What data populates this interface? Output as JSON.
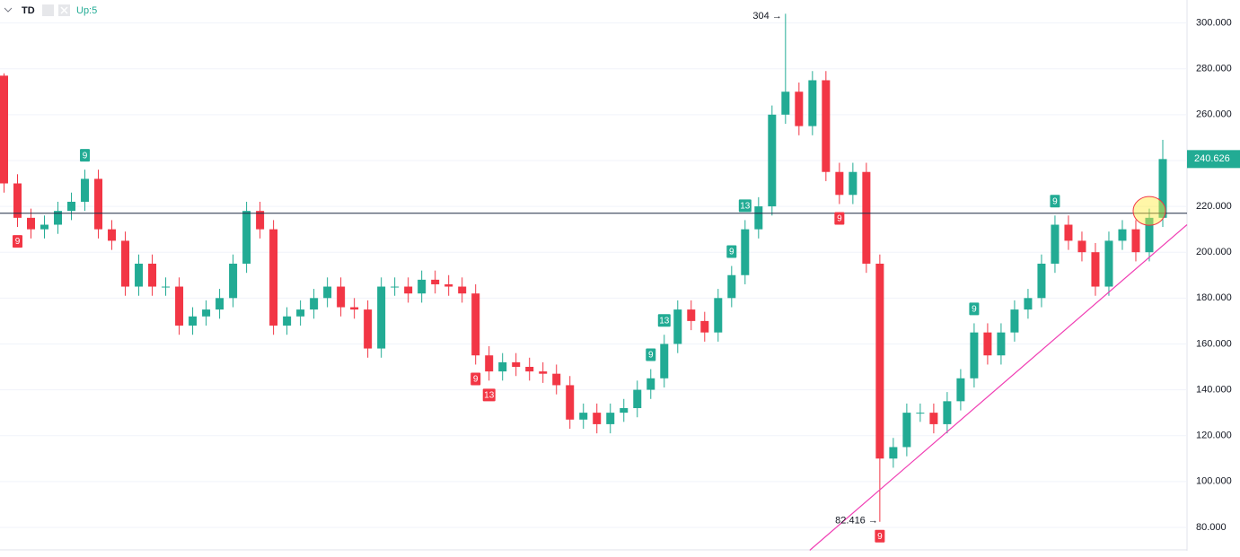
{
  "header": {
    "symbol": "TD",
    "indicator": "Up:5"
  },
  "chart_data": {
    "type": "candlestick",
    "up_color": "#22ab94",
    "down_color": "#f23645",
    "open": [
      277,
      230,
      215,
      210,
      212,
      218,
      222,
      232,
      210,
      205,
      185,
      195,
      185,
      185,
      168,
      172,
      175,
      180,
      195,
      218,
      210,
      168,
      172,
      175,
      180,
      185,
      176,
      175,
      158,
      185,
      185,
      182,
      188,
      186,
      185,
      182,
      155,
      148,
      152,
      150,
      148,
      147,
      142,
      127,
      130,
      125,
      130,
      132,
      140,
      145,
      160,
      175,
      170,
      165,
      180,
      190,
      210,
      220,
      260,
      270,
      255,
      275,
      235,
      225,
      235,
      195,
      110,
      115,
      130,
      130,
      125,
      135,
      145,
      165,
      155,
      165,
      175,
      180,
      195,
      212,
      205,
      200,
      185,
      205,
      210,
      200,
      215
    ],
    "high": [
      278,
      234,
      219,
      216,
      222,
      226,
      236,
      236,
      214,
      209,
      199,
      199,
      189,
      189,
      176,
      179,
      184,
      199,
      222,
      222,
      214,
      176,
      179,
      184,
      189,
      189,
      180,
      179,
      189,
      189,
      189,
      192,
      192,
      190,
      189,
      186,
      159,
      156,
      156,
      154,
      152,
      151,
      146,
      134,
      134,
      134,
      136,
      144,
      149,
      164,
      179,
      179,
      174,
      184,
      194,
      214,
      224,
      264,
      304,
      274,
      279,
      279,
      239,
      239,
      239,
      199,
      119,
      134,
      134,
      134,
      139,
      149,
      169,
      169,
      169,
      179,
      184,
      199,
      216,
      216,
      209,
      204,
      209,
      214,
      214,
      219,
      249
    ],
    "low": [
      226,
      211,
      206,
      206,
      208,
      214,
      218,
      206,
      201,
      181,
      181,
      181,
      181,
      164,
      164,
      168,
      171,
      176,
      191,
      206,
      164,
      164,
      168,
      171,
      176,
      172,
      171,
      154,
      154,
      181,
      178,
      178,
      182,
      181,
      178,
      151,
      144,
      144,
      146,
      144,
      143,
      138,
      123,
      123,
      121,
      121,
      126,
      128,
      136,
      141,
      156,
      166,
      161,
      161,
      176,
      186,
      206,
      216,
      256,
      251,
      251,
      231,
      221,
      221,
      191,
      82.416,
      106,
      111,
      126,
      121,
      121,
      131,
      141,
      151,
      151,
      161,
      171,
      176,
      191,
      201,
      196,
      181,
      181,
      201,
      196,
      196,
      211
    ],
    "close": [
      230,
      215,
      210,
      212,
      218,
      222,
      232,
      210,
      205,
      185,
      195,
      185,
      185,
      168,
      172,
      175,
      180,
      195,
      218,
      210,
      168,
      172,
      175,
      180,
      185,
      176,
      175,
      158,
      185,
      185,
      182,
      188,
      186,
      185,
      182,
      155,
      148,
      152,
      150,
      148,
      147,
      142,
      127,
      130,
      125,
      130,
      132,
      140,
      145,
      160,
      175,
      170,
      165,
      180,
      190,
      210,
      220,
      260,
      270,
      255,
      275,
      235,
      225,
      235,
      195,
      110,
      115,
      130,
      130,
      125,
      135,
      145,
      165,
      155,
      165,
      175,
      180,
      195,
      212,
      205,
      200,
      185,
      205,
      210,
      200,
      215,
      240.626
    ],
    "xlim": [
      -0.3,
      87.8
    ],
    "ylim": [
      70,
      310
    ],
    "yticks": [
      {
        "value": 80,
        "label": "80.000"
      },
      {
        "value": 100,
        "label": "100.000"
      },
      {
        "value": 120,
        "label": "120.000"
      },
      {
        "value": 140,
        "label": "140.000"
      },
      {
        "value": 160,
        "label": "160.000"
      },
      {
        "value": 180,
        "label": "180.000"
      },
      {
        "value": 200,
        "label": "200.000"
      },
      {
        "value": 220,
        "label": "220.000"
      },
      {
        "value": 240,
        "label": "240.000"
      },
      {
        "value": 260,
        "label": "260.000"
      },
      {
        "value": 280,
        "label": "280.000"
      },
      {
        "value": 300,
        "label": "300.000"
      }
    ],
    "grid": true,
    "max_label": {
      "index": 58,
      "text": "304 →"
    },
    "min_label": {
      "index": 65,
      "text": "82.416 →"
    },
    "markers": [
      {
        "index": 1,
        "label": "9",
        "side": "down"
      },
      {
        "index": 6,
        "label": "9",
        "side": "up"
      },
      {
        "index": 35,
        "label": "9",
        "side": "down"
      },
      {
        "index": 36,
        "label": "13",
        "side": "down"
      },
      {
        "index": 48,
        "label": "9",
        "side": "up"
      },
      {
        "index": 49,
        "label": "13",
        "side": "up"
      },
      {
        "index": 54,
        "label": "9",
        "side": "up"
      },
      {
        "index": 55,
        "label": "13",
        "side": "up"
      },
      {
        "index": 62,
        "label": "9",
        "side": "down"
      },
      {
        "index": 65,
        "label": "9",
        "side": "down"
      },
      {
        "index": 72,
        "label": "9",
        "side": "up"
      },
      {
        "index": 78,
        "label": "9",
        "side": "up"
      }
    ],
    "hline": {
      "value": 217,
      "color": "#1f2a44"
    },
    "trendline": {
      "from": [
        59.8,
        70
      ],
      "to": [
        87.8,
        212
      ],
      "color": "#f03fb4"
    },
    "highlight": {
      "x": 85,
      "y": 218
    }
  }
}
